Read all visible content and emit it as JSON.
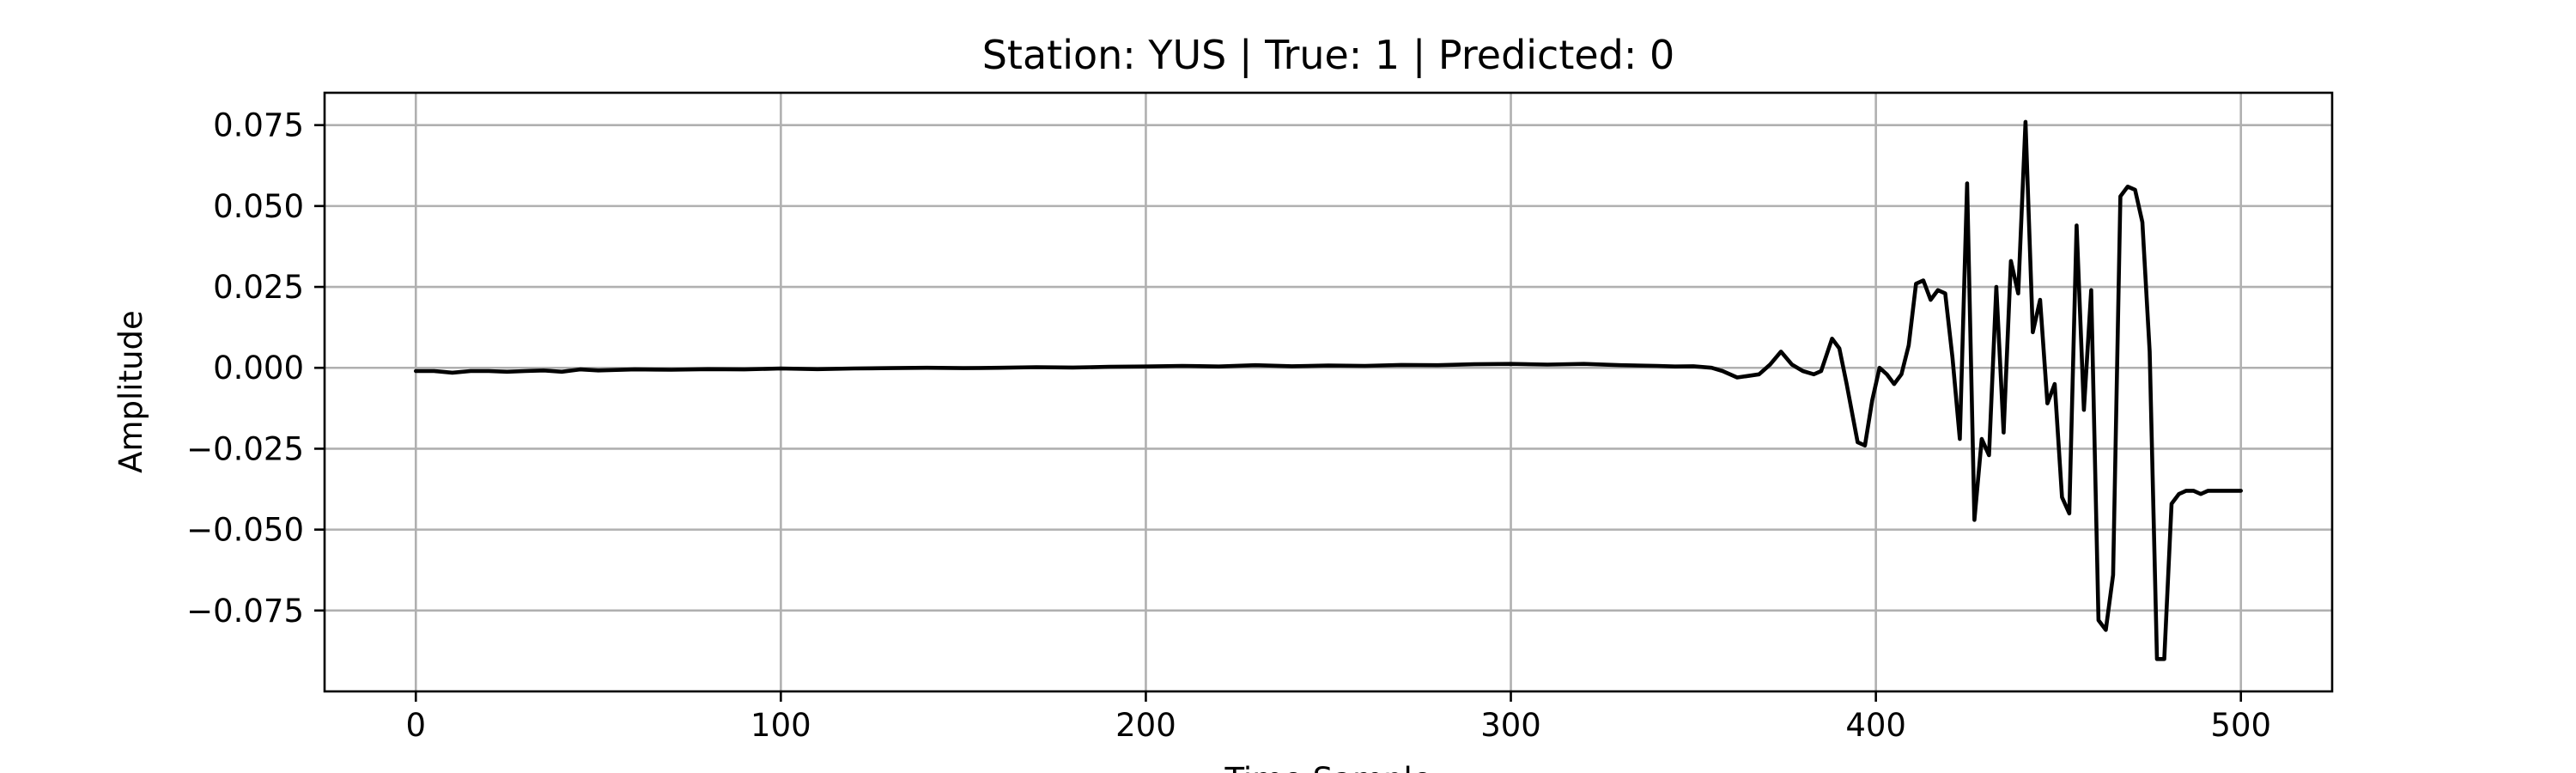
{
  "chart_data": {
    "type": "line",
    "title": "Station: YUS | True: 1 | Predicted: 0",
    "xlabel": "Time Sample",
    "ylabel": "Amplitude",
    "xlim": [
      -25,
      525
    ],
    "ylim": [
      -0.1,
      0.085
    ],
    "xticks": [
      0,
      100,
      200,
      300,
      400,
      500
    ],
    "xtick_labels": [
      "0",
      "100",
      "200",
      "300",
      "400",
      "500"
    ],
    "yticks": [
      0.075,
      0.05,
      0.025,
      0.0,
      -0.025,
      -0.05,
      -0.075
    ],
    "ytick_labels": [
      "0.075",
      "0.050",
      "0.025",
      "0.000",
      "−0.025",
      "−0.050",
      "−0.075"
    ],
    "grid": true,
    "series": [
      {
        "color": "#000000",
        "x": [
          0,
          5,
          10,
          15,
          20,
          25,
          30,
          35,
          40,
          45,
          50,
          60,
          70,
          80,
          90,
          100,
          110,
          120,
          130,
          140,
          150,
          160,
          170,
          180,
          190,
          200,
          210,
          220,
          230,
          240,
          250,
          260,
          270,
          280,
          290,
          300,
          310,
          320,
          330,
          340,
          345,
          350,
          355,
          358,
          362,
          365,
          368,
          371,
          374,
          377,
          380,
          383,
          385,
          388,
          390,
          392,
          395,
          397,
          399,
          401,
          403,
          405,
          407,
          409,
          411,
          413,
          415,
          417,
          419,
          421,
          423,
          425,
          427,
          429,
          431,
          433,
          435,
          437,
          439,
          441,
          443,
          445,
          447,
          449,
          451,
          453,
          455,
          457,
          459,
          461,
          463,
          465,
          467,
          469,
          471,
          473,
          475,
          477,
          479,
          481,
          483,
          485,
          487,
          489,
          491,
          493,
          494,
          495,
          497,
          499,
          500
        ],
        "y": [
          -0.001,
          -0.001,
          -0.0015,
          -0.001,
          -0.001,
          -0.0012,
          -0.001,
          -0.0008,
          -0.0012,
          -0.0005,
          -0.0008,
          -0.0005,
          -0.0006,
          -0.0004,
          -0.0005,
          -0.0002,
          -0.0004,
          -0.0002,
          -0.0001,
          0.0,
          -0.0001,
          0.0,
          0.0002,
          0.0001,
          0.0003,
          0.0004,
          0.0006,
          0.0004,
          0.0008,
          0.0005,
          0.0007,
          0.0006,
          0.0009,
          0.0008,
          0.0011,
          0.0012,
          0.001,
          0.0012,
          0.0008,
          0.0006,
          0.0004,
          0.0005,
          0.0,
          -0.001,
          -0.003,
          -0.0025,
          -0.002,
          0.001,
          0.005,
          0.001,
          -0.001,
          -0.002,
          -0.001,
          0.009,
          0.006,
          -0.005,
          -0.023,
          -0.024,
          -0.01,
          0.0,
          -0.002,
          -0.005,
          -0.002,
          0.007,
          0.026,
          0.027,
          0.021,
          0.024,
          0.023,
          0.003,
          -0.022,
          0.057,
          -0.047,
          -0.022,
          -0.027,
          0.025,
          -0.02,
          0.033,
          0.023,
          0.076,
          0.011,
          0.021,
          -0.011,
          -0.005,
          -0.04,
          -0.045,
          0.044,
          -0.013,
          0.024,
          -0.078,
          -0.081,
          -0.064,
          0.053,
          0.056,
          0.055,
          0.045,
          0.005,
          -0.09,
          -0.09,
          -0.042,
          -0.039,
          -0.038,
          -0.038,
          -0.039,
          -0.038,
          -0.038,
          -0.038,
          -0.038,
          -0.038,
          -0.038,
          -0.038
        ]
      }
    ]
  }
}
